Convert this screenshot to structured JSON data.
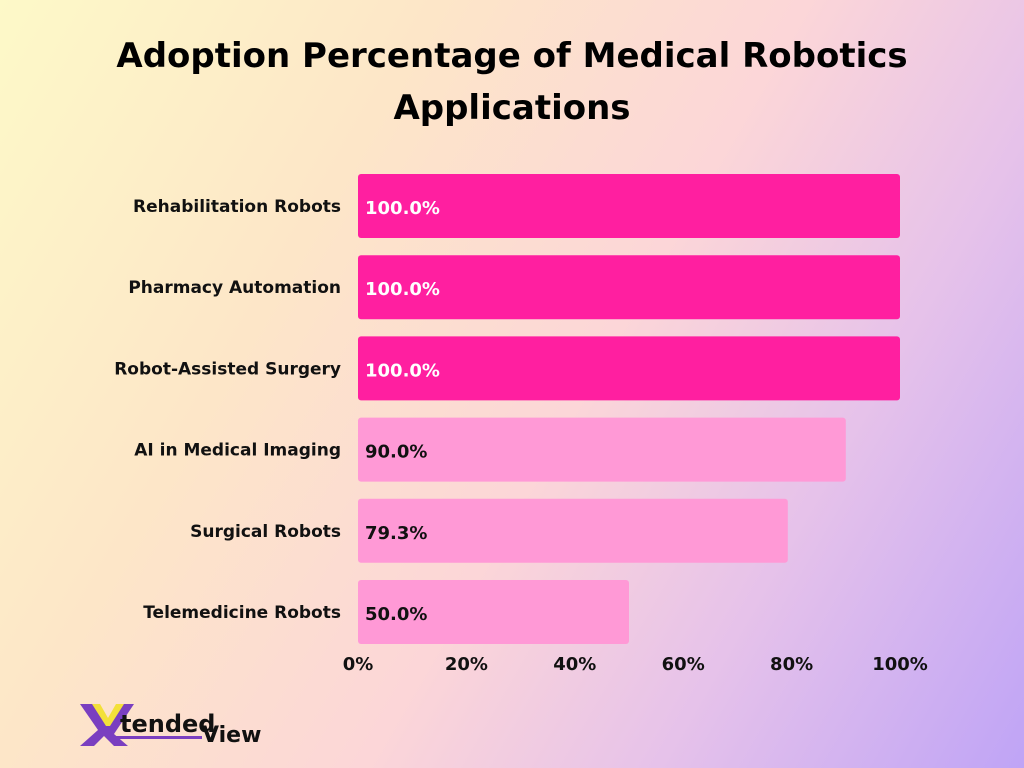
{
  "chart_data": {
    "type": "bar",
    "orientation": "horizontal",
    "title": "Adoption Percentage of Medical Robotics Applications",
    "categories": [
      "Rehabilitation Robots",
      "Pharmacy Automation",
      "Robot-Assisted Surgery",
      "AI in Medical Imaging",
      "Surgical Robots",
      "Telemedicine Robots"
    ],
    "values": [
      100.0,
      100.0,
      100.0,
      90.0,
      79.3,
      50.0
    ],
    "data_labels": [
      "100.0%",
      "100.0%",
      "100.0%",
      "90.0%",
      "79.3%",
      "50.0%"
    ],
    "xlim": [
      0,
      100
    ],
    "x_ticks": [
      "0%",
      "20%",
      "40%",
      "60%",
      "80%",
      "100%"
    ],
    "x_tick_values": [
      0,
      20,
      40,
      60,
      80,
      100
    ],
    "grid": false,
    "colors": {
      "highlight": "#ff1fa0",
      "normal": "#ff99d6",
      "highlight_label": "#ffffff",
      "normal_label": "#111111"
    }
  },
  "logo": {
    "text_part1": "tended",
    "text_part2": "View",
    "letter": "X"
  }
}
